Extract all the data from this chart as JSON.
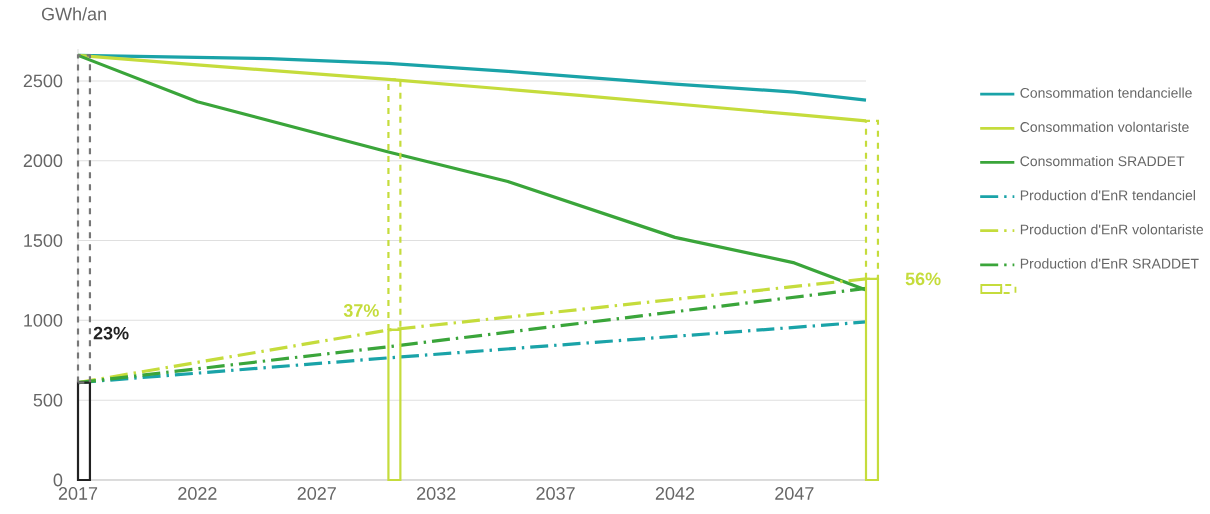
{
  "chart_data": {
    "type": "line",
    "ylabel": "GWh/an",
    "xlim": [
      2017,
      2050
    ],
    "xticks": [
      2017,
      2022,
      2027,
      2032,
      2037,
      2042,
      2047
    ],
    "ylim": [
      0,
      2700
    ],
    "yticks": [
      0,
      500,
      1000,
      1500,
      2000,
      2500
    ],
    "grid": "y",
    "legend": "right",
    "series": [
      {
        "name": "Consommation tendancielle",
        "color": "#1aa3a8",
        "line_style": "solid",
        "x": [
          2017,
          2025,
          2030,
          2035,
          2038,
          2042,
          2047,
          2050
        ],
        "values": [
          2660,
          2640,
          2610,
          2560,
          2525,
          2480,
          2430,
          2380
        ]
      },
      {
        "name": "Consommation volontariste",
        "color": "#c5dc3c",
        "line_style": "solid",
        "x": [
          2017,
          2022,
          2030,
          2038,
          2047,
          2050
        ],
        "values": [
          2660,
          2600,
          2510,
          2410,
          2290,
          2250
        ]
      },
      {
        "name": "Consommation SRADDET",
        "color": "#3aa53a",
        "line_style": "solid",
        "x": [
          2017,
          2022,
          2030,
          2035,
          2042,
          2047,
          2050
        ],
        "values": [
          2660,
          2370,
          2055,
          1870,
          1520,
          1360,
          1190
        ]
      },
      {
        "name": "Production d'EnR tendanciel",
        "color": "#1aa3a8",
        "line_style": "dashdot",
        "x": [
          2017,
          2030,
          2050
        ],
        "values": [
          610,
          765,
          990
        ]
      },
      {
        "name": "Production d'EnR volontariste",
        "color": "#c5dc3c",
        "line_style": "dashdot",
        "x": [
          2017,
          2030,
          2050
        ],
        "values": [
          610,
          940,
          1260
        ]
      },
      {
        "name": "Production d'EnR SRADDET",
        "color": "#3aa53a",
        "line_style": "dashdot",
        "x": [
          2017,
          2030,
          2050
        ],
        "values": [
          610,
          835,
          1200
        ]
      },
      {
        "type": "bar",
        "x": [
          2017,
          2030,
          2050
        ],
        "values": [
          610,
          940,
          1260
        ],
        "colors": [
          "#222222",
          "#c5dc3c",
          "#c5dc3c"
        ],
        "line_style": "solid"
      },
      {
        "type": "bar",
        "x": [
          2017,
          2030,
          2050
        ],
        "base": [
          610,
          940,
          1260
        ],
        "values": [
          2050,
          1570,
          990
        ],
        "colors": [
          "#777777",
          "#c5dc3c",
          "#c5dc3c"
        ],
        "line_style": "dashed"
      }
    ],
    "annotations": [
      {
        "text": "23%",
        "x": 2017,
        "y": 610
      },
      {
        "text": "37%",
        "x": 2030,
        "y": 940
      },
      {
        "text": "56%",
        "x": 2050,
        "y": 1260
      }
    ]
  }
}
